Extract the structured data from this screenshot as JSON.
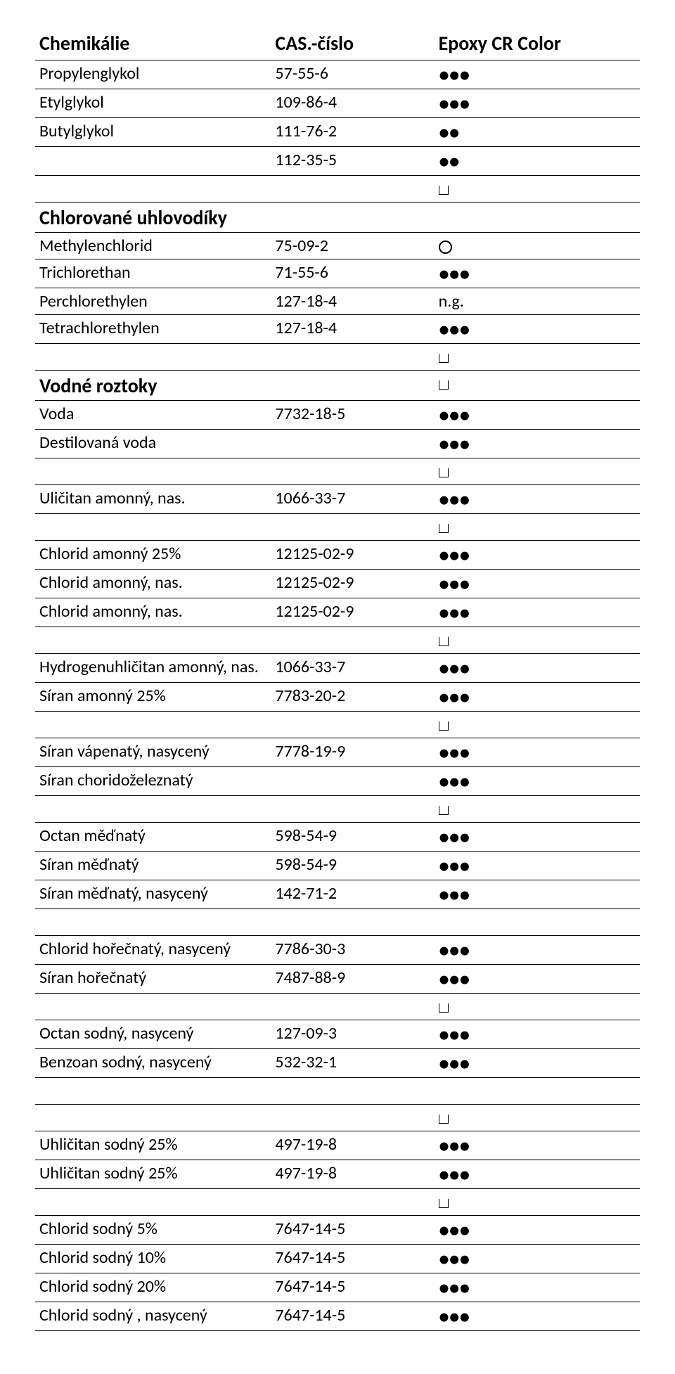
{
  "header": {
    "col1": "Chemikálie",
    "col2": "CAS.-číslo",
    "col3": "Epoxy CR Color"
  },
  "symbols": {
    "d3": "●●●",
    "d2": "●●",
    "ng": "n.g."
  },
  "rows": [
    {
      "c1": "Propylenglykol",
      "c2": "57-55-6",
      "sym": "d3"
    },
    {
      "c1": "Etylglykol",
      "c2": "109-86-4",
      "sym": "d3"
    },
    {
      "c1": "Butylglykol",
      "c2": "111-76-2",
      "sym": "d2"
    },
    {
      "c1": "",
      "c2": "112-35-5",
      "sym": "d2"
    },
    {
      "c1": "",
      "c2": "",
      "sym": "sq"
    },
    {
      "c1": "Chlorované uhlovodíky",
      "c2": "",
      "sym": "",
      "section": true
    },
    {
      "c1": "Methylenchlorid",
      "c2": "75-09-2",
      "sym": "circ"
    },
    {
      "c1": "Trichlorethan",
      "c2": "71-55-6",
      "sym": "d3"
    },
    {
      "c1": "Perchlorethylen",
      "c2": "127-18-4",
      "sym": "ng"
    },
    {
      "c1": "Tetrachlorethylen",
      "c2": "127-18-4",
      "sym": "d3"
    },
    {
      "c1": "",
      "c2": "",
      "sym": "sq"
    },
    {
      "c1": "Vodné roztoky",
      "c2": "",
      "sym": "sq",
      "section": true
    },
    {
      "c1": "Voda",
      "c2": "7732-18-5",
      "sym": "d3"
    },
    {
      "c1": "Destilovaná voda",
      "c2": "",
      "sym": "d3"
    },
    {
      "c1": "",
      "c2": "",
      "sym": "sq"
    },
    {
      "c1": "Uličitan amonný, nas.",
      "c2": "1066-33-7",
      "sym": "d3"
    },
    {
      "c1": "",
      "c2": "",
      "sym": "sq"
    },
    {
      "c1": "Chlorid amonný 25%",
      "c2": "12125-02-9",
      "sym": "d3"
    },
    {
      "c1": "Chlorid amonný, nas.",
      "c2": "12125-02-9",
      "sym": "d3"
    },
    {
      "c1": "Chlorid amonný, nas.",
      "c2": "12125-02-9",
      "sym": "d3"
    },
    {
      "c1": "",
      "c2": "",
      "sym": "sq"
    },
    {
      "c1": "Hydrogenuhličitan amonný, nas.",
      "c2": "1066-33-7",
      "sym": "d3"
    },
    {
      "c1": "Síran amonný 25%",
      "c2": "7783-20-2",
      "sym": "d3"
    },
    {
      "c1": "",
      "c2": "",
      "sym": "sq"
    },
    {
      "c1": "Síran vápenatý, nasycený",
      "c2": "7778-19-9",
      "sym": "d3"
    },
    {
      "c1": "Síran choridoželeznatý",
      "c2": "",
      "sym": "d3"
    },
    {
      "c1": "",
      "c2": "",
      "sym": "sq"
    },
    {
      "c1": "Octan měďnatý",
      "c2": "598-54-9",
      "sym": "d3"
    },
    {
      "c1": "Síran měďnatý",
      "c2": "598-54-9",
      "sym": "d3"
    },
    {
      "c1": "Síran měďnatý, nasycený",
      "c2": "142-71-2",
      "sym": "d3"
    },
    {
      "c1": "",
      "c2": "",
      "sym": ""
    },
    {
      "c1": "Chlorid hořečnatý, nasycený",
      "c2": "7786-30-3",
      "sym": "d3"
    },
    {
      "c1": "Síran hořečnatý",
      "c2": "7487-88-9",
      "sym": "d3"
    },
    {
      "c1": "",
      "c2": "",
      "sym": "sq"
    },
    {
      "c1": "Octan sodný, nasycený",
      "c2": "127-09-3",
      "sym": "d3"
    },
    {
      "c1": "Benzoan sodný, nasycený",
      "c2": "532-32-1",
      "sym": "d3"
    },
    {
      "c1": "",
      "c2": "",
      "sym": ""
    },
    {
      "c1": "",
      "c2": "",
      "sym": "sq"
    },
    {
      "c1": "Uhličitan sodný 25%",
      "c2": "497-19-8",
      "sym": "d3"
    },
    {
      "c1": "Uhličitan sodný 25%",
      "c2": "497-19-8",
      "sym": "d3"
    },
    {
      "c1": "",
      "c2": "",
      "sym": "sq"
    },
    {
      "c1": "Chlorid sodný 5%",
      "c2": "7647-14-5",
      "sym": "d3"
    },
    {
      "c1": "Chlorid sodný 10%",
      "c2": "7647-14-5",
      "sym": "d3"
    },
    {
      "c1": "Chlorid sodný 20%",
      "c2": "7647-14-5",
      "sym": "d3"
    },
    {
      "c1": "Chlorid sodný , nasycený",
      "c2": "7647-14-5",
      "sym": "d3"
    }
  ]
}
